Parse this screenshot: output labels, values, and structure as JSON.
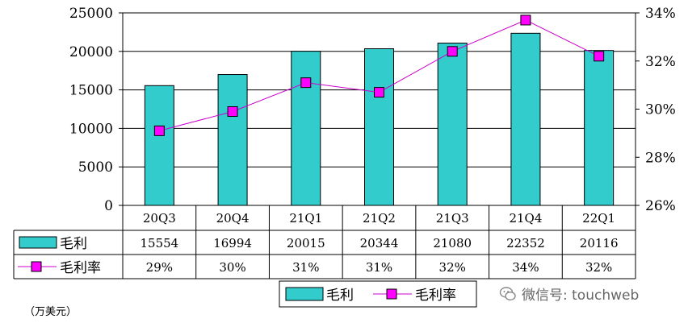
{
  "chart_data": {
    "type": "bar+line",
    "categories": [
      "20Q3",
      "20Q4",
      "21Q1",
      "21Q2",
      "21Q3",
      "21Q4",
      "22Q1"
    ],
    "series": [
      {
        "name": "毛利",
        "type": "bar",
        "axis": "left",
        "color": "#33cccc",
        "values": [
          15554,
          16994,
          20015,
          20344,
          21080,
          22352,
          20116
        ],
        "labels": [
          "15554",
          "16994",
          "20015",
          "20344",
          "21080",
          "22352",
          "20116"
        ]
      },
      {
        "name": "毛利率",
        "type": "line",
        "axis": "right",
        "color": "#cc00cc",
        "marker_color": "#ff00ff",
        "values": [
          29.1,
          29.9,
          31.1,
          30.7,
          32.4,
          33.7,
          32.2
        ],
        "labels": [
          "29%",
          "30%",
          "31%",
          "31%",
          "32%",
          "34%",
          "32%"
        ]
      }
    ],
    "y_left": {
      "min": 0,
      "max": 25000,
      "ticks": [
        "0",
        "5000",
        "10000",
        "15000",
        "20000",
        "25000"
      ]
    },
    "y_right": {
      "min": 26,
      "max": 34,
      "ticks": [
        "26%",
        "28%",
        "30%",
        "32%",
        "34%"
      ]
    },
    "grid": true,
    "data_table": true,
    "legend_position": "bottom"
  },
  "unit_label": "（万美元）",
  "watermark": {
    "text": "微信号: touchweb"
  }
}
